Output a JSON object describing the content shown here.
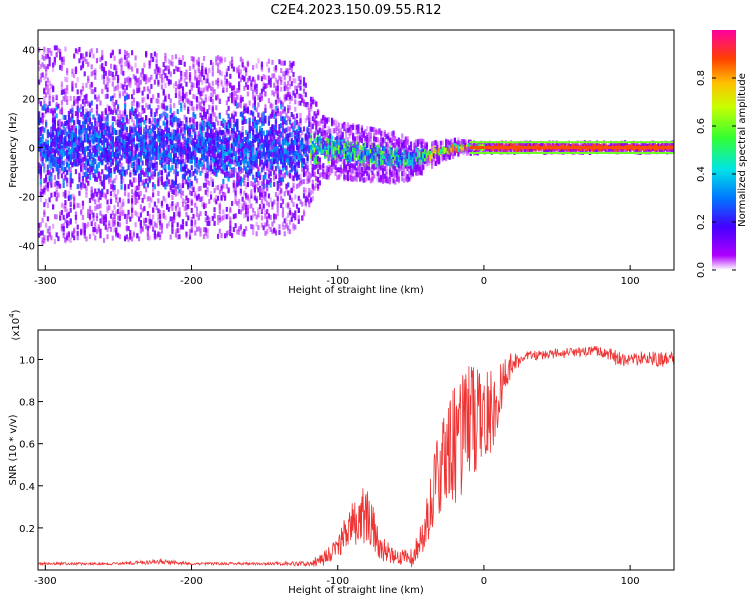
{
  "title": "C2E4.2023.150.09.55.R12",
  "chart_data": [
    {
      "type": "heatmap",
      "name": "spectrogram",
      "xlabel": "Height of straight line (km)",
      "ylabel": "Frequency (Hz)",
      "xlim": [
        -305,
        130
      ],
      "ylim": [
        -50,
        48
      ],
      "xticks": [
        -300,
        -200,
        -100,
        0,
        100
      ],
      "yticks": [
        -40,
        -20,
        0,
        20,
        40
      ],
      "description_points": {
        "band_center_hz": [
          {
            "x": -300,
            "y": 1
          },
          {
            "x": -150,
            "y": 0
          },
          {
            "x": -110,
            "y": 0
          },
          {
            "x": -80,
            "y": -3
          },
          {
            "x": -50,
            "y": -5
          },
          {
            "x": -20,
            "y": 0
          },
          {
            "x": 0,
            "y": 0
          },
          {
            "x": 130,
            "y": 0
          }
        ],
        "spread_hz": [
          {
            "x": -300,
            "y": 40
          },
          {
            "x": -130,
            "y": 35
          },
          {
            "x": -110,
            "y": 12
          },
          {
            "x": -60,
            "y": 10
          },
          {
            "x": -30,
            "y": 4
          },
          {
            "x": 0,
            "y": 2
          },
          {
            "x": 130,
            "y": 2
          }
        ]
      },
      "colorbar": {
        "label": "Normalized spectral amplitude",
        "ticks": [
          0.0,
          0.2,
          0.4,
          0.6,
          0.8
        ],
        "range": [
          0,
          1
        ]
      }
    },
    {
      "type": "line",
      "name": "snr",
      "xlabel": "Height of straight line (km)",
      "ylabel": "SNR (10 * v/v)",
      "multiplier": "(x10",
      "multiplier_exp": "4",
      "multiplier_close": ")",
      "xlim": [
        -305,
        130
      ],
      "ylim": [
        0.0,
        1.14
      ],
      "xticks": [
        -300,
        -200,
        -100,
        0,
        100
      ],
      "yticks": [
        0.2,
        0.4,
        0.6,
        0.8,
        1.0
      ],
      "ytick_labels": [
        "0.2",
        "0.4",
        "0.6",
        "0.8",
        "1.0"
      ],
      "color": "#ee3333",
      "series": [
        {
          "name": "SNR",
          "x": [
            -305,
            -250,
            -220,
            -200,
            -150,
            -120,
            -110,
            -100,
            -90,
            -80,
            -75,
            -70,
            -60,
            -50,
            -40,
            -35,
            -30,
            -25,
            -20,
            -15,
            -10,
            -5,
            0,
            5,
            10,
            15,
            20,
            25,
            30,
            40,
            50,
            60,
            70,
            80,
            90,
            100,
            110,
            120,
            130
          ],
          "y": [
            0.03,
            0.03,
            0.04,
            0.03,
            0.03,
            0.03,
            0.05,
            0.12,
            0.2,
            0.28,
            0.2,
            0.1,
            0.06,
            0.05,
            0.2,
            0.35,
            0.5,
            0.55,
            0.58,
            0.62,
            0.68,
            0.72,
            0.72,
            0.75,
            0.82,
            0.92,
            0.98,
            1.0,
            1.02,
            1.02,
            1.03,
            1.03,
            1.04,
            1.04,
            1.01,
            1.0,
            1.01,
            1.0,
            1.0
          ],
          "noise": [
            0.005,
            0.005,
            0.01,
            0.005,
            0.005,
            0.01,
            0.03,
            0.05,
            0.1,
            0.12,
            0.1,
            0.05,
            0.03,
            0.04,
            0.08,
            0.15,
            0.2,
            0.2,
            0.25,
            0.25,
            0.25,
            0.2,
            0.2,
            0.18,
            0.12,
            0.08,
            0.05,
            0.02,
            0.02,
            0.02,
            0.02,
            0.02,
            0.02,
            0.02,
            0.03,
            0.03,
            0.03,
            0.03,
            0.03
          ]
        }
      ]
    }
  ]
}
